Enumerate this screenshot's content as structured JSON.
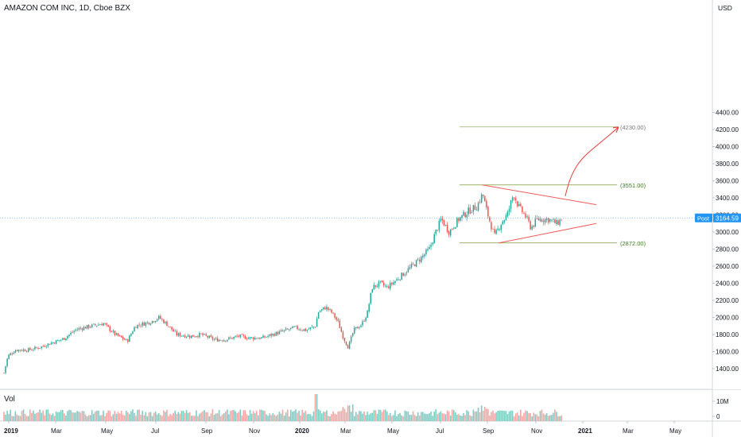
{
  "header": {
    "title": "AMAZON COM INC, 1D, Cboe BZX",
    "currency": "USD",
    "volume_label": "Vol"
  },
  "chart_data": {
    "type": "candlestick",
    "series_name": "AMAZON COM INC",
    "interval": "1D",
    "exchange": "Cboe BZX",
    "price_axis": {
      "range": [
        1200,
        4400
      ],
      "ticks": [
        1400,
        1600,
        1800,
        2000,
        2200,
        2400,
        2600,
        2800,
        3000,
        3200,
        3400,
        3600,
        3800,
        4000,
        4200,
        4400
      ],
      "tick_labels": [
        "1400.00",
        "1600.00",
        "1800.00",
        "2000.00",
        "2200.00",
        "2400.00",
        "2600.00",
        "2800.00",
        "3000.00",
        "3200.00",
        "3400.00",
        "3600.00",
        "3800.00",
        "4000.00",
        "4200.00",
        "4400.00"
      ],
      "side": "right"
    },
    "time_axis": {
      "labels": [
        "2019",
        "Mar",
        "May",
        "Jul",
        "Sep",
        "Nov",
        "2020",
        "Mar",
        "May",
        "Jul",
        "Sep",
        "Nov",
        "2021",
        "Mar",
        "May"
      ]
    },
    "volume_axis": {
      "labels": [
        "10M",
        "0"
      ]
    },
    "last_price": {
      "label": "Post",
      "value": 3164.59,
      "text": "3164.59"
    },
    "close_path": [
      [
        "2019-01",
        1500
      ],
      [
        "2019-02",
        1640
      ],
      [
        "2019-03",
        1780
      ],
      [
        "2019-04",
        1900
      ],
      [
        "2019-05",
        1820
      ],
      [
        "2019-06",
        1890
      ],
      [
        "2019-07",
        1960
      ],
      [
        "2019-08",
        1790
      ],
      [
        "2019-09",
        1770
      ],
      [
        "2019-10",
        1760
      ],
      [
        "2019-11",
        1770
      ],
      [
        "2019-12",
        1850
      ],
      [
        "2020-01",
        2000
      ],
      [
        "2020-02",
        2150
      ],
      [
        "2020-03",
        1780
      ],
      [
        "2020-04",
        2400
      ],
      [
        "2020-05",
        2450
      ],
      [
        "2020-06",
        2750
      ],
      [
        "2020-07",
        3150
      ],
      [
        "2020-08",
        3250
      ],
      [
        "2020-09",
        3150
      ],
      [
        "2020-10",
        3200
      ],
      [
        "2020-11",
        3150
      ],
      [
        "2020-12",
        3164.59
      ]
    ],
    "annotations": {
      "levels": [
        {
          "label": "(4230.00)",
          "value": 4230
        },
        {
          "label": "(3551.00)",
          "value": 3551
        },
        {
          "label": "(2872.00)",
          "value": 2872
        }
      ],
      "triangle": {
        "upper": [
          [
            "2020-08-31",
            3551
          ],
          [
            "2020-12-31",
            3320
          ]
        ],
        "lower": [
          [
            "2020-09-21",
            2872
          ],
          [
            "2020-12-31",
            3100
          ]
        ]
      },
      "projection_arrow": {
        "from_value": 3420,
        "to_value": 4230
      }
    },
    "colors": {
      "up": "#26a69a",
      "down": "#ef5350",
      "up_volume": "#7fcbc2",
      "down_volume": "#f5a5a3",
      "level_line": "#6b8e23",
      "level_label": "#3a7d1c",
      "target_label": "#777777",
      "triangle": "#f05a5a",
      "arrow": "#e53935",
      "last_price_badge": "#2196f3"
    },
    "grid": false,
    "legend": "none"
  }
}
